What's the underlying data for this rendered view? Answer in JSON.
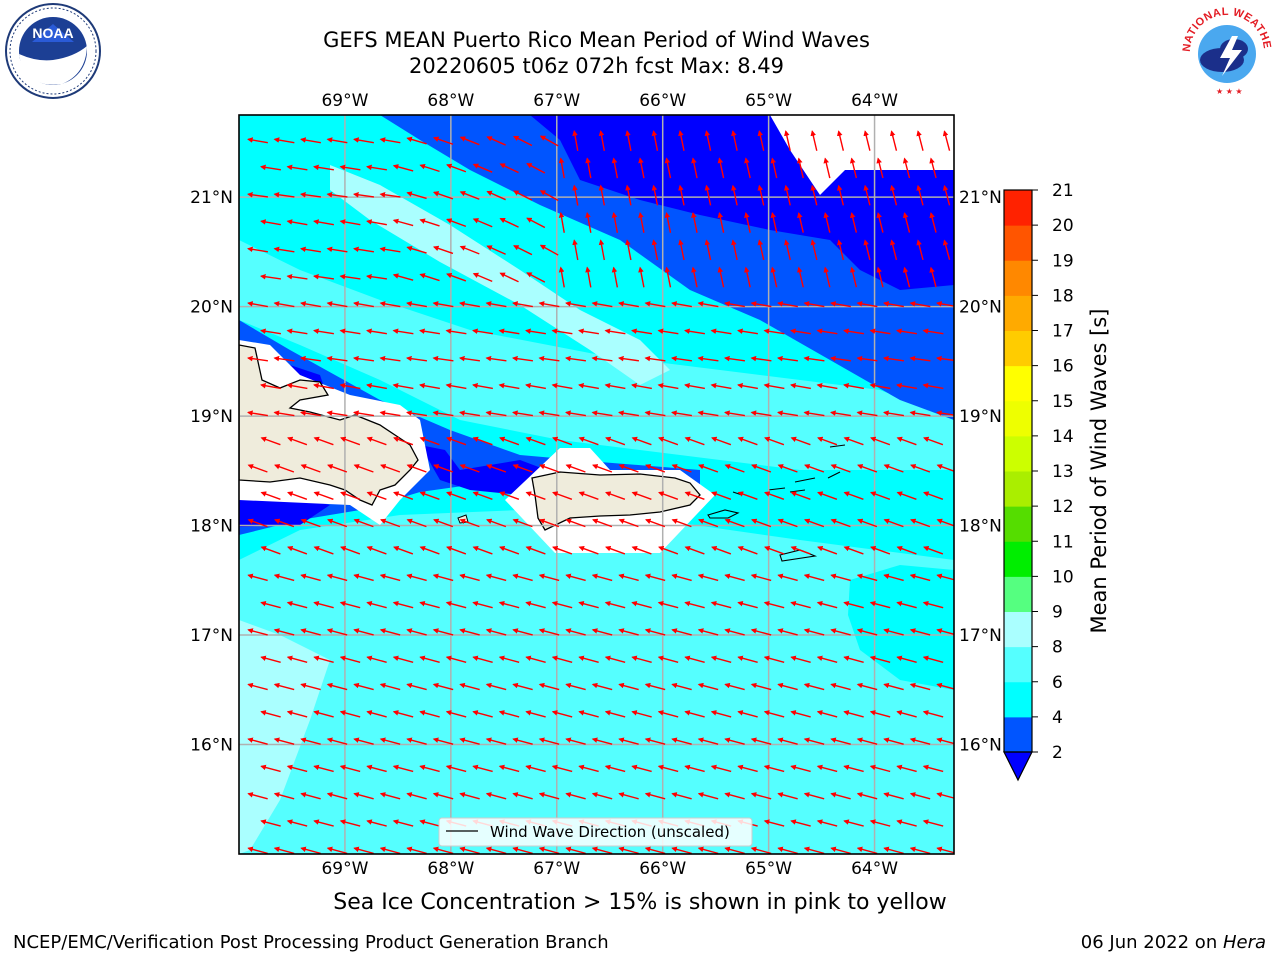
{
  "title": {
    "line1": "GEFS MEAN Puerto Rico Mean Period of Wind Waves",
    "line2": "20220605 t06z 072h fcst   Max: 8.49"
  },
  "map": {
    "lon_range": [
      -70.0,
      -63.25
    ],
    "lat_range": [
      15.0,
      21.75
    ],
    "lon_ticks": [
      {
        "value": -69,
        "label": "69°W"
      },
      {
        "value": -68,
        "label": "68°W"
      },
      {
        "value": -67,
        "label": "67°W"
      },
      {
        "value": -66,
        "label": "66°W"
      },
      {
        "value": -65,
        "label": "65°W"
      },
      {
        "value": -64,
        "label": "64°W"
      }
    ],
    "lat_ticks": [
      {
        "value": 16,
        "label": "16°N"
      },
      {
        "value": 17,
        "label": "17°N"
      },
      {
        "value": 18,
        "label": "18°N"
      },
      {
        "value": 19,
        "label": "19°N"
      },
      {
        "value": 20,
        "label": "20°N"
      },
      {
        "value": 21,
        "label": "21°N"
      }
    ],
    "gridlines": true,
    "legend": {
      "label": "Wind Wave Direction (unscaled)",
      "location": "lower-center"
    },
    "colors": {
      "ocean_base": "#55ffff",
      "land": "#efecdc",
      "arrow": "#ff0000"
    }
  },
  "colorbar": {
    "title": "Mean Period of Wind Waves [s]",
    "levels": [
      2,
      4,
      6,
      8,
      9,
      10,
      11,
      12,
      13,
      14,
      15,
      16,
      17,
      18,
      19,
      20,
      21
    ],
    "colors": [
      "#0055ff",
      "#00ffff",
      "#55ffff",
      "#aaffff",
      "#55ff80",
      "#00ee00",
      "#55dd00",
      "#aaee00",
      "#ccff00",
      "#eeff00",
      "#ffff00",
      "#ffcc00",
      "#ffaa00",
      "#ff8800",
      "#ff5500",
      "#ff2200"
    ],
    "under_color": "#0000ff",
    "top_color": "#ff0000"
  },
  "footer": {
    "ice_note": "Sea Ice Concentration > 15% is shown in pink to yellow",
    "left": "NCEP/EMC/Verification Post Processing Product Generation Branch",
    "right_date": "06 Jun 2022 on ",
    "right_host": "Hera"
  },
  "logos": {
    "noaa_text": "NOAA",
    "nws_text": "NATIONAL WEATHER SERVICE"
  }
}
